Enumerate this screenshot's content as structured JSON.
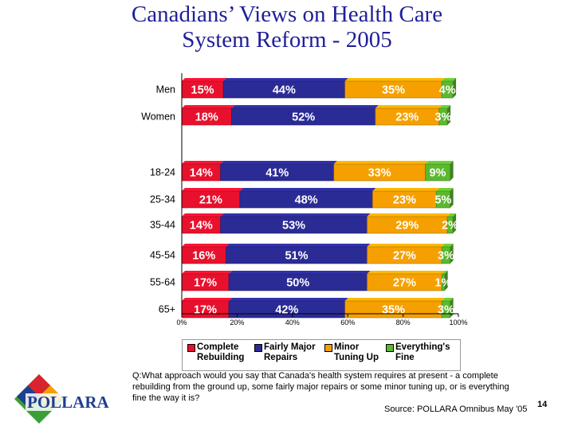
{
  "title_line1": "Canadians’ Views on Health Care",
  "title_line2": "System Reform - 2005",
  "chart_data": {
    "type": "bar",
    "orientation": "horizontal",
    "stacked": true,
    "xlim": [
      0,
      100
    ],
    "tick_labels": [
      "0%",
      "20%",
      "40%",
      "60%",
      "80%",
      "100%"
    ],
    "categories": [
      "Men",
      "Women",
      "18-24",
      "25-34",
      "35-44",
      "45-54",
      "55-64",
      "65+"
    ],
    "series": [
      {
        "name": "Complete Rebuilding",
        "color": "#e8112d",
        "values": [
          15,
          18,
          14,
          21,
          14,
          16,
          17,
          17
        ],
        "labels": [
          "15%",
          "18%",
          "14%",
          "21%",
          "14%",
          "16%",
          "17%",
          "17%"
        ]
      },
      {
        "name": "Fairly Major Repairs",
        "color": "#2b2b96",
        "values": [
          44,
          52,
          41,
          48,
          53,
          51,
          50,
          42
        ],
        "labels": [
          "44%",
          "52%",
          "41%",
          "48%",
          "53%",
          "51%",
          "50%",
          "42%"
        ]
      },
      {
        "name": "Minor Tuning Up",
        "color": "#f5a000",
        "values": [
          35,
          23,
          33,
          23,
          29,
          27,
          27,
          35
        ],
        "labels": [
          "35%",
          "23%",
          "33%",
          "23%",
          "29%",
          "27%",
          "27%",
          "35%"
        ]
      },
      {
        "name": "Everything's Fine",
        "color": "#5cb82e",
        "values": [
          4,
          3,
          9,
          5,
          2,
          3,
          1,
          3
        ],
        "labels": [
          "4%",
          "3%",
          "9%",
          "5%",
          "2%",
          "3%",
          "1%",
          "3%"
        ]
      }
    ],
    "legend_position": "bottom"
  },
  "legend": [
    {
      "label": "Complete\nRebuilding",
      "color": "#e8112d"
    },
    {
      "label": "Fairly Major\nRepairs",
      "color": "#2b2b96"
    },
    {
      "label": "Minor\nTuning Up",
      "color": "#f5a000"
    },
    {
      "label": "Everything's\nFine",
      "color": "#5cb82e"
    }
  ],
  "question": "Q:What approach would you say that Canada's health system requires at present - a complete rebuilding from the ground up, some fairly major repairs or some minor tuning up, or is everything fine the way it is?",
  "source": "Source:  POLLARA Omnibus May '05",
  "page_number": "14",
  "logo_text": "POLLARA",
  "colors": {
    "title": "#1f1f9a",
    "logo_red": "#d9232e",
    "logo_blue": "#1f3f8f",
    "logo_green": "#3aa035",
    "logo_orange": "#f5a000"
  }
}
